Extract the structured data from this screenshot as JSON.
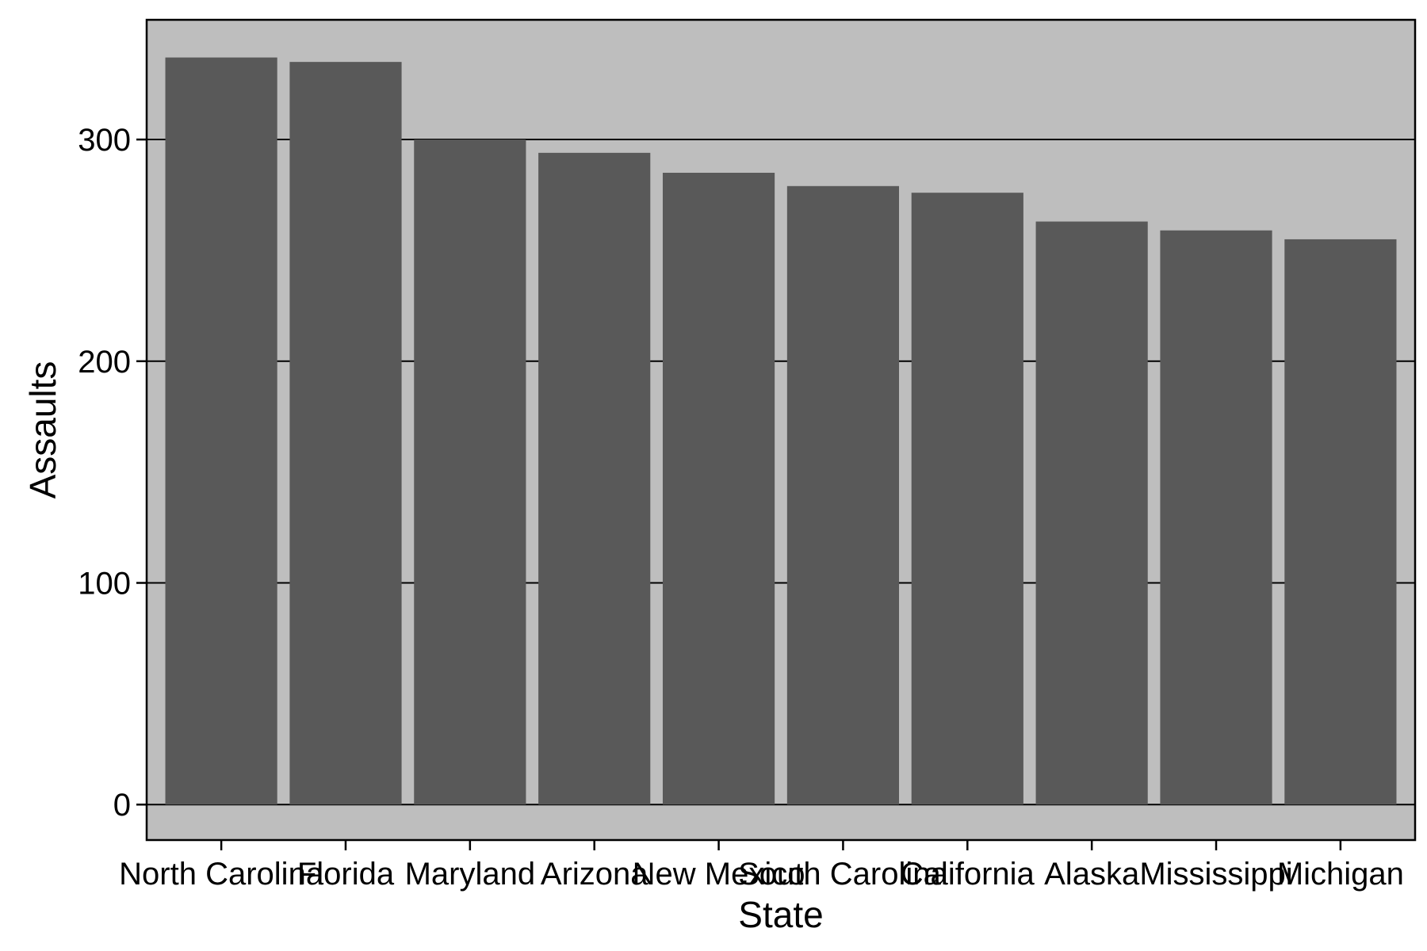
{
  "chart_data": {
    "type": "bar",
    "title": "",
    "xlabel": "State",
    "ylabel": "Assaults",
    "categories": [
      "North Carolina",
      "Florida",
      "Maryland",
      "Arizona",
      "New Mexico",
      "South Carolina",
      "California",
      "Alaska",
      "Mississippi",
      "Michigan"
    ],
    "values": [
      337,
      335,
      300,
      294,
      285,
      279,
      276,
      263,
      259,
      255
    ],
    "yticks": [
      0,
      100,
      200,
      300
    ],
    "ytick_labels": [
      "0",
      "100",
      "200",
      "300"
    ],
    "ylim": [
      -16,
      354
    ],
    "grid": "horizontal major lines",
    "legend": "none",
    "colors": {
      "panel_background": "#bebebe",
      "bar_fill": "#595959",
      "grid_line": "#000000",
      "frame": "#000000"
    }
  }
}
